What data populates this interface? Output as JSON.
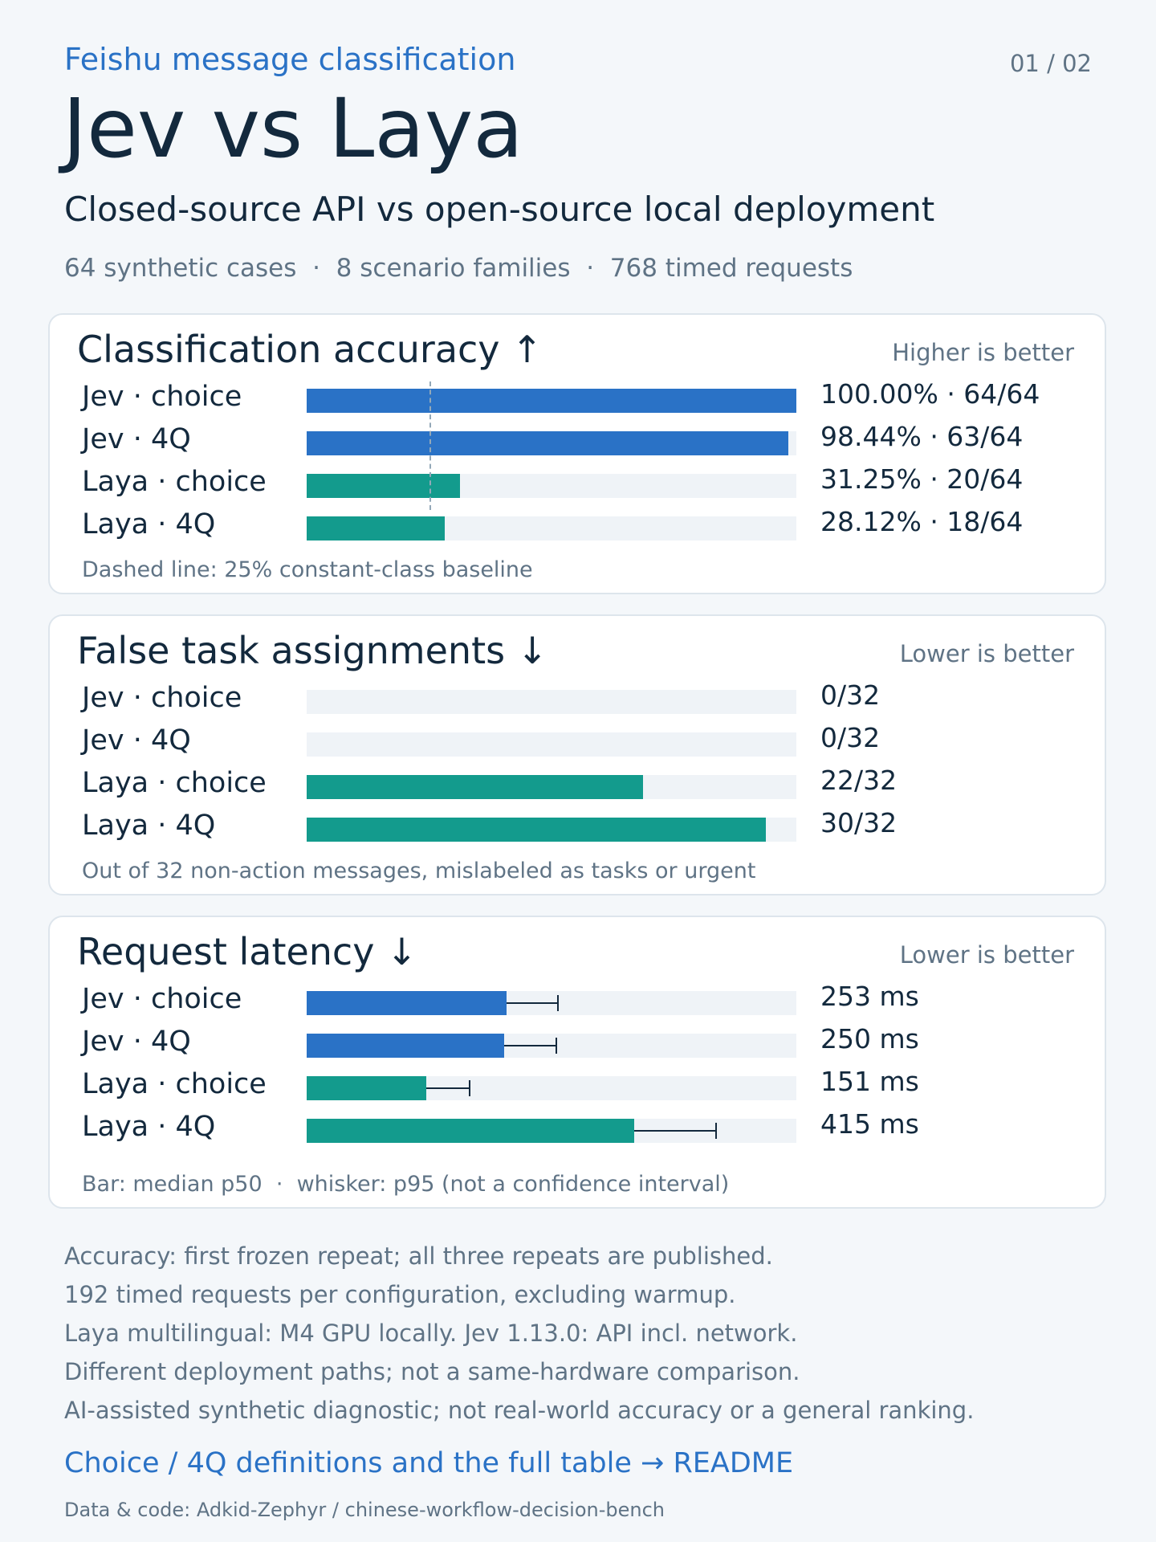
{
  "header": {
    "eyebrow": "Feishu message classification",
    "pager": "01 / 02",
    "title": "Jev vs Laya",
    "subtitle": "Closed-source API vs open-source local deployment",
    "meta": "64 synthetic cases  ·  8 scenario families  ·  768 timed requests"
  },
  "colors": {
    "jev": "#2a72c6",
    "laya": "#139b8d",
    "track": "#eff3f7"
  },
  "chart_data": [
    {
      "type": "bar",
      "title": "Classification accuracy ↑",
      "hint": "Higher is better",
      "note": "Dashed line: 25% constant-class baseline",
      "categories": [
        "Jev · choice",
        "Jev · 4Q",
        "Laya · choice",
        "Laya · 4Q"
      ],
      "values": [
        100.0,
        98.44,
        31.25,
        28.12
      ],
      "value_labels": [
        "100.00% · 64/64",
        "98.44% · 63/64",
        "31.25% · 20/64",
        "28.12% · 18/64"
      ],
      "ylim": [
        0,
        100
      ],
      "baseline": 25
    },
    {
      "type": "bar",
      "title": "False task assignments ↓",
      "hint": "Lower is better",
      "note": "Out of 32 non-action messages, mislabeled as tasks or urgent",
      "categories": [
        "Jev · choice",
        "Jev · 4Q",
        "Laya · choice",
        "Laya · 4Q"
      ],
      "values": [
        0,
        0,
        22,
        30
      ],
      "value_labels": [
        "0/32",
        "0/32",
        "22/32",
        "30/32"
      ],
      "ylim": [
        0,
        32
      ]
    },
    {
      "type": "bar",
      "title": "Request latency ↓",
      "hint": "Lower is better",
      "note": "Bar: median p50  ·  whisker: p95 (not a confidence interval)",
      "categories": [
        "Jev · choice",
        "Jev · 4Q",
        "Laya · choice",
        "Laya · 4Q"
      ],
      "values": [
        253,
        250,
        151,
        415
      ],
      "p95": [
        318,
        316,
        206,
        518
      ],
      "value_labels": [
        "253 ms",
        "250 ms",
        "151 ms",
        "415 ms"
      ],
      "ylim": [
        0,
        620
      ]
    }
  ],
  "footnotes": [
    "Accuracy: first frozen repeat; all three repeats are published.",
    "192 timed requests per configuration, excluding warmup.",
    "Laya multilingual: M4 GPU locally. Jev 1.13.0: API incl. network.",
    "Different deployment paths; not a same-hardware comparison.",
    "AI-assisted synthetic diagnostic; not real-world accuracy or a general ranking."
  ],
  "readme_link": "Choice / 4Q definitions and the full table → README",
  "source": "Data & code: Adkid-Zephyr / chinese-workflow-decision-bench"
}
